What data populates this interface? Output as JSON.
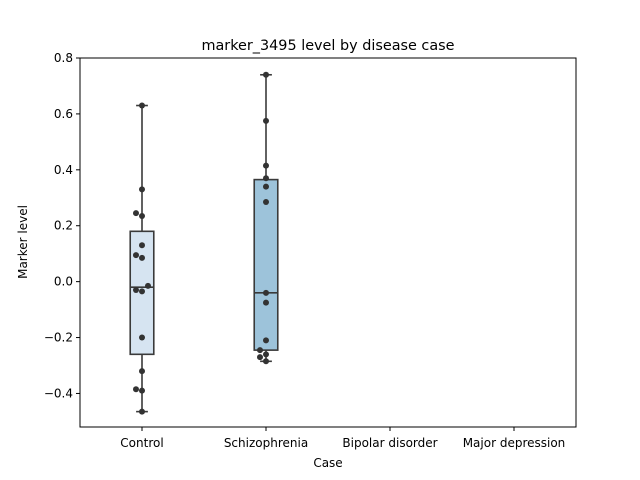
{
  "chart_data": {
    "type": "box",
    "title": "marker_3495 level by disease case",
    "xlabel": "Case",
    "ylabel": "Marker level",
    "ylim": [
      -0.52,
      0.8
    ],
    "yticks": [
      -0.4,
      -0.2,
      0.0,
      0.2,
      0.4,
      0.6,
      0.8
    ],
    "ytick_labels": [
      "−0.4",
      "−0.2",
      "0.0",
      "0.2",
      "0.4",
      "0.6",
      "0.8"
    ],
    "categories": [
      "Control",
      "Schizophrenia",
      "Bipolar disorder",
      "Major depression"
    ],
    "grid": false,
    "boxes": [
      {
        "category": "Control",
        "color": "#d6e4f1",
        "min": -0.465,
        "q1": -0.26,
        "median": -0.02,
        "q3": 0.18,
        "max": 0.63,
        "points": [
          0.63,
          0.33,
          0.245,
          0.235,
          0.13,
          0.095,
          0.085,
          -0.015,
          -0.03,
          -0.035,
          -0.2,
          -0.32,
          -0.385,
          -0.39,
          -0.465
        ]
      },
      {
        "category": "Schizophrenia",
        "color": "#9dc3da",
        "min": -0.285,
        "q1": -0.245,
        "median": -0.04,
        "q3": 0.365,
        "max": 0.74,
        "points": [
          0.74,
          0.575,
          0.415,
          0.37,
          0.34,
          0.285,
          -0.04,
          -0.075,
          -0.21,
          -0.245,
          -0.26,
          -0.27,
          -0.285
        ]
      }
    ],
    "colors": {
      "box_edge": "#3a3a3a",
      "point": "#333333",
      "axis": "#000000"
    }
  }
}
